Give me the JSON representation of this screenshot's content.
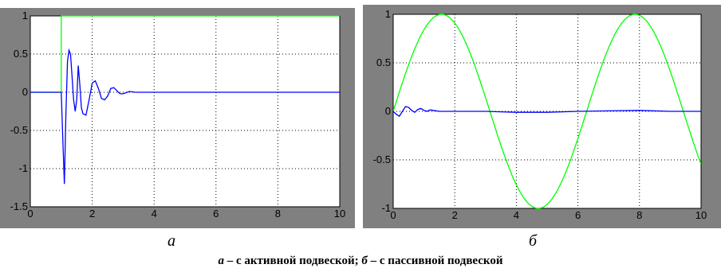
{
  "chart_data": [
    {
      "type": "line",
      "xlim": [
        0,
        10
      ],
      "ylim": [
        -1.5,
        1
      ],
      "x_ticks": [
        "0",
        "2",
        "4",
        "6",
        "8",
        "10"
      ],
      "y_ticks": [
        "1",
        "0.5",
        "0",
        "-0.5",
        "-1",
        "-1.5"
      ],
      "grid": true,
      "series": [
        {
          "color": "#00ff00",
          "x": [
            0,
            1,
            1,
            10
          ],
          "y": [
            0,
            0,
            1,
            1
          ]
        },
        {
          "color": "#0000ff",
          "x": [
            0,
            1.0,
            1.05,
            1.1,
            1.15,
            1.2,
            1.25,
            1.3,
            1.35,
            1.4,
            1.45,
            1.5,
            1.55,
            1.6,
            1.65,
            1.7,
            1.8,
            1.9,
            2.0,
            2.1,
            2.2,
            2.3,
            2.4,
            2.5,
            2.6,
            2.7,
            2.8,
            2.9,
            3.0,
            3.2,
            3.4,
            3.6,
            4.0,
            6.0,
            8.0,
            10.0
          ],
          "y": [
            0,
            0,
            -0.6,
            -1.2,
            -0.3,
            0.4,
            0.55,
            0.5,
            0.2,
            -0.1,
            -0.25,
            -0.1,
            0.35,
            0.1,
            -0.2,
            -0.28,
            -0.3,
            -0.1,
            0.12,
            0.15,
            0.05,
            -0.08,
            -0.1,
            -0.05,
            0.05,
            0.06,
            0.02,
            -0.02,
            -0.02,
            0.01,
            0.0,
            0.0,
            0.0,
            0.0,
            0.0,
            0.0
          ]
        }
      ]
    },
    {
      "type": "line",
      "xlim": [
        0,
        10
      ],
      "ylim": [
        -1,
        1
      ],
      "x_ticks": [
        "0",
        "2",
        "4",
        "6",
        "8",
        "10"
      ],
      "y_ticks": [
        "1",
        "0.5",
        "0",
        "-0.5",
        "-1"
      ],
      "grid": true,
      "series": [
        {
          "color": "#00ff00",
          "function": "sin(x)",
          "samples": 200
        },
        {
          "color": "#0000ff",
          "x": [
            0,
            0.1,
            0.2,
            0.3,
            0.4,
            0.5,
            0.6,
            0.7,
            0.8,
            0.9,
            1.0,
            1.1,
            1.2,
            1.3,
            1.5,
            2.0,
            3.0,
            4.0,
            5.0,
            6.0,
            7.0,
            8.0,
            9.0,
            10.0
          ],
          "y": [
            0,
            -0.03,
            -0.05,
            0.0,
            0.05,
            0.04,
            0.01,
            -0.01,
            0.02,
            0.03,
            0.01,
            0.0,
            0.015,
            0.01,
            0.0,
            0.0,
            0.0,
            -0.01,
            -0.01,
            0.0,
            0.005,
            0.01,
            0.0,
            0.0
          ]
        }
      ]
    }
  ],
  "labels": {
    "a": "а",
    "b": "б"
  },
  "caption": {
    "a": "а",
    "a_text": " – с активной подвеской; ",
    "b": "б",
    "b_text": " – с пассивной подвеской"
  }
}
